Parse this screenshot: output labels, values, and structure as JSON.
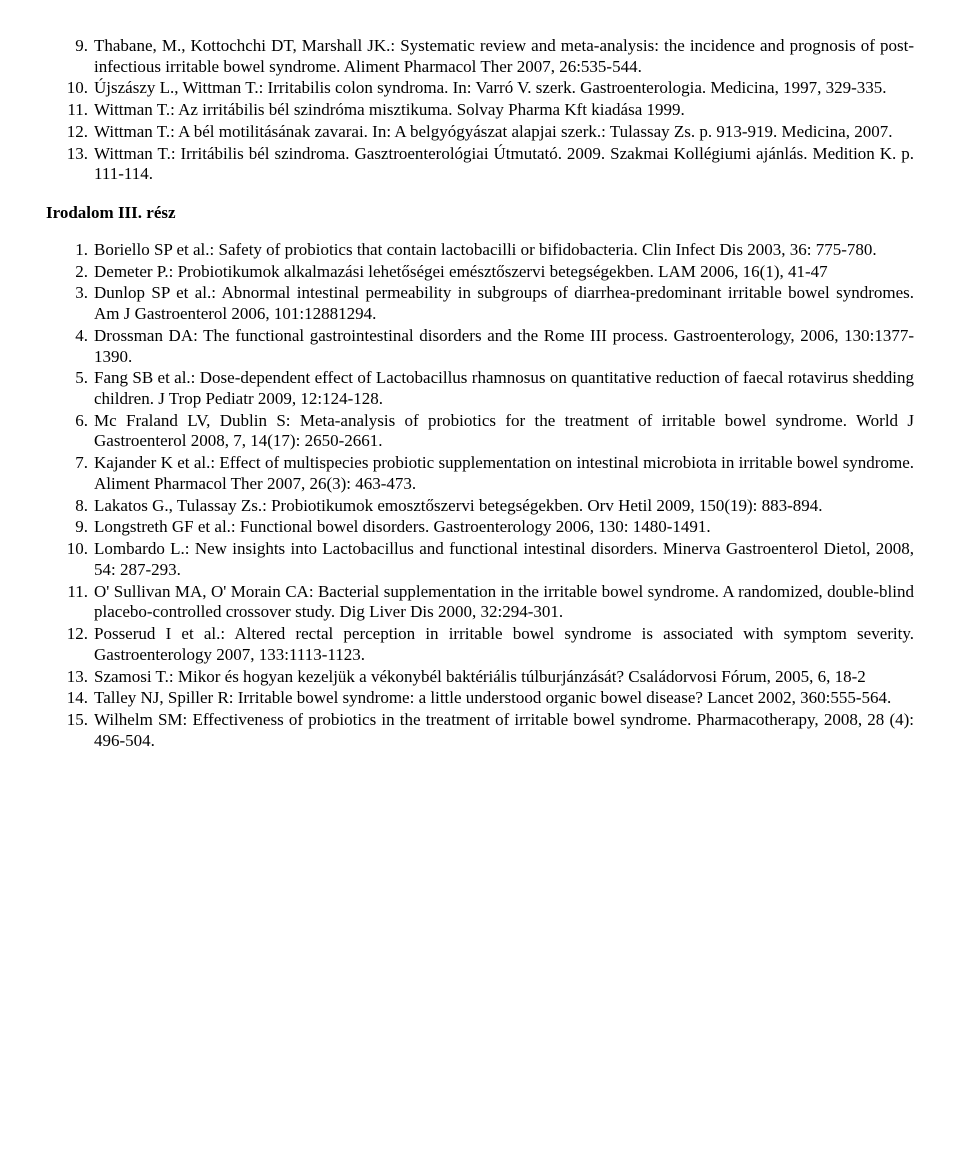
{
  "topList": {
    "start": 9,
    "items": [
      "Thabane, M., Kottochchi DT, Marshall JK.: Systematic review and meta-analysis: the incidence and prognosis of post-infectious irritable bowel syndrome. Aliment Pharmacol Ther 2007, 26:535-544.",
      "Újszászy L., Wittman T.: Irritabilis colon syndroma. In: Varró V. szerk. Gastroenterologia. Medicina, 1997, 329-335.",
      "Wittman T.: Az irritábilis bél szindróma misztikuma. Solvay Pharma Kft kiadása 1999.",
      "Wittman T.: A bél motilitásának zavarai. In: A belgyógyászat alapjai szerk.: Tulassay Zs. p. 913-919. Medicina, 2007.",
      "Wittman T.: Irritábilis bél szindroma. Gasztroenterológiai Útmutató. 2009. Szakmai Kollégiumi ajánlás. Medition K. p. 111-114."
    ]
  },
  "sectionHeading": "Irodalom III. rész",
  "bottomList": {
    "start": 1,
    "items": [
      "Boriello SP et al.: Safety of probiotics that contain lactobacilli or bifidobacteria. Clin Infect Dis 2003, 36: 775-780.",
      "Demeter P.: Probiotikumok alkalmazási lehetőségei emésztőszervi betegségekben. LAM 2006, 16(1), 41-47",
      "Dunlop SP et al.: Abnormal intestinal permeability in subgroups of diarrhea-predominant irritable bowel syndromes. Am J Gastroenterol 2006, 101:12881294.",
      " Drossman DA: The functional gastrointestinal disorders and the Rome III process. Gastroenterology, 2006, 130:1377-1390.",
      "Fang SB et al.: Dose-dependent effect of Lactobacillus rhamnosus on quantitative reduction of faecal rotavirus shedding children. J Trop Pediatr 2009, 12:124-128.",
      "Mc Fraland LV, Dublin S: Meta-analysis of probiotics for the treatment of irritable bowel syndrome. World J Gastroenterol 2008, 7, 14(17): 2650-2661.",
      "Kajander K et al.: Effect of multispecies probiotic supplementation on intestinal microbiota in irritable bowel syndrome. Aliment Pharmacol  Ther 2007, 26(3): 463-473.",
      "Lakatos G., Tulassay Zs.: Probiotikumok emosztőszervi betegségekben. Orv Hetil 2009, 150(19): 883-894.",
      "Longstreth GF et al.: Functional bowel disorders. Gastroenterology 2006, 130: 1480-1491.",
      "Lombardo L.: New insights into Lactobacillus and functional intestinal disorders. Minerva Gastroenterol Dietol, 2008, 54: 287-293.",
      "O' Sullivan MA, O' Morain CA: Bacterial supplementation in the irritable bowel syndrome. A randomized, double-blind placebo-controlled crossover study. Dig Liver Dis 2000, 32:294-301.",
      "Posserud I et al.: Altered rectal perception in irritable bowel syndrome is associated with symptom severity. Gastroenterology 2007, 133:1113-1123.",
      "Szamosi T.: Mikor és hogyan kezeljük a vékonybél baktériális túlburjánzását? Családorvosi Fórum, 2005, 6, 18-2",
      "Talley NJ, Spiller R: Irritable bowel syndrome: a little understood organic bowel disease? Lancet 2002, 360:555-564.",
      "Wilhelm SM: Effectiveness of probiotics in the treatment of irritable bowel syndrome. Pharmacotherapy, 2008, 28 (4): 496-504."
    ]
  }
}
